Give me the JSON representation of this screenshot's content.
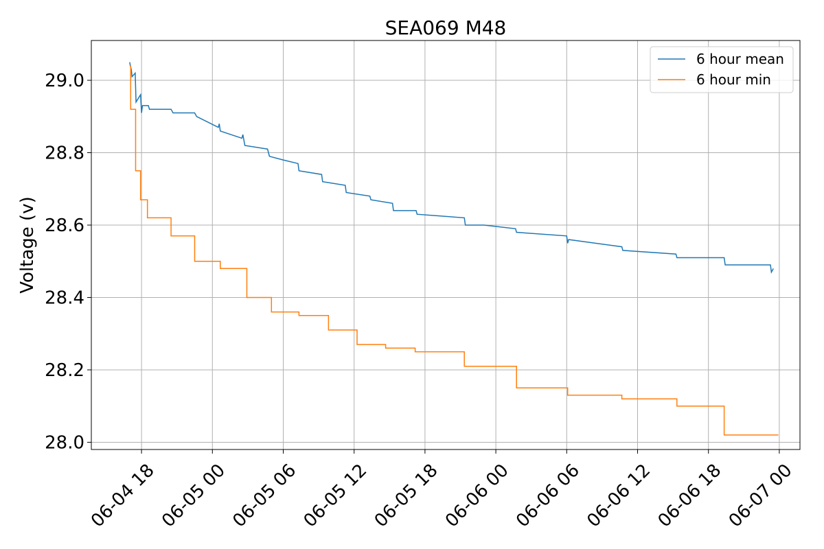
{
  "chart_data": {
    "type": "line",
    "title": "SEA069 M48",
    "xlabel": "",
    "ylabel": "Voltage (v)",
    "x_type": "datetime",
    "xlim": [
      "2024-06-04T13:45",
      "2024-06-07T01:45"
    ],
    "ylim": [
      27.98,
      29.11
    ],
    "x_ticks": [
      {
        "t": "2024-06-04T18:00",
        "label": "06-04 18"
      },
      {
        "t": "2024-06-05T00:00",
        "label": "06-05 00"
      },
      {
        "t": "2024-06-05T06:00",
        "label": "06-05 06"
      },
      {
        "t": "2024-06-05T12:00",
        "label": "06-05 12"
      },
      {
        "t": "2024-06-05T18:00",
        "label": "06-05 18"
      },
      {
        "t": "2024-06-06T00:00",
        "label": "06-06 00"
      },
      {
        "t": "2024-06-06T06:00",
        "label": "06-06 06"
      },
      {
        "t": "2024-06-06T12:00",
        "label": "06-06 12"
      },
      {
        "t": "2024-06-06T18:00",
        "label": "06-06 18"
      },
      {
        "t": "2024-06-07T00:00",
        "label": "06-07 00"
      }
    ],
    "y_ticks": [
      {
        "v": 28.0,
        "label": "28.0"
      },
      {
        "v": 28.2,
        "label": "28.2"
      },
      {
        "v": 28.4,
        "label": "28.4"
      },
      {
        "v": 28.6,
        "label": "28.6"
      },
      {
        "v": 28.8,
        "label": "28.8"
      },
      {
        "v": 29.0,
        "label": "29.0"
      }
    ],
    "grid": true,
    "legend_position": "top-right",
    "series": [
      {
        "name": "6 hour mean",
        "color": "#1f77b4",
        "x": [
          "2024-06-04T17:00",
          "2024-06-04T17:03",
          "2024-06-04T17:08",
          "2024-06-04T17:12",
          "2024-06-04T17:28",
          "2024-06-04T17:32",
          "2024-06-04T17:55",
          "2024-06-04T18:00",
          "2024-06-04T18:05",
          "2024-06-04T18:35",
          "2024-06-04T18:40",
          "2024-06-04T20:30",
          "2024-06-04T20:40",
          "2024-06-04T20:45",
          "2024-06-04T22:30",
          "2024-06-04T22:40",
          "2024-06-05T00:30",
          "2024-06-05T00:35",
          "2024-06-05T00:40",
          "2024-06-05T02:30",
          "2024-06-05T02:35",
          "2024-06-05T02:45",
          "2024-06-05T04:40",
          "2024-06-05T04:45",
          "2024-06-05T04:50",
          "2024-06-05T06:00",
          "2024-06-05T07:15",
          "2024-06-05T07:20",
          "2024-06-05T09:15",
          "2024-06-05T09:20",
          "2024-06-05T11:15",
          "2024-06-05T11:20",
          "2024-06-05T13:20",
          "2024-06-05T13:25",
          "2024-06-05T15:15",
          "2024-06-05T15:20",
          "2024-06-05T17:15",
          "2024-06-05T17:20",
          "2024-06-05T21:20",
          "2024-06-05T21:25",
          "2024-06-05T23:00",
          "2024-06-06T01:40",
          "2024-06-06T01:45",
          "2024-06-06T06:00",
          "2024-06-06T06:05",
          "2024-06-06T06:10",
          "2024-06-06T10:40",
          "2024-06-06T10:45",
          "2024-06-06T15:15",
          "2024-06-06T15:20",
          "2024-06-06T19:20",
          "2024-06-06T19:25",
          "2024-06-06T23:15",
          "2024-06-06T23:20",
          "2024-06-06T23:30"
        ],
        "y": [
          29.05,
          29.04,
          29.03,
          29.01,
          29.02,
          28.94,
          28.96,
          28.91,
          28.93,
          28.93,
          28.92,
          28.92,
          28.91,
          28.91,
          28.91,
          28.9,
          28.87,
          28.88,
          28.86,
          28.84,
          28.85,
          28.82,
          28.81,
          28.8,
          28.79,
          28.78,
          28.77,
          28.75,
          28.74,
          28.72,
          28.71,
          28.69,
          28.68,
          28.67,
          28.66,
          28.64,
          28.64,
          28.63,
          28.62,
          28.6,
          28.6,
          28.59,
          28.58,
          28.57,
          28.55,
          28.56,
          28.54,
          28.53,
          28.52,
          28.51,
          28.51,
          28.49,
          28.49,
          28.47,
          28.48
        ]
      },
      {
        "name": "6 hour min",
        "color": "#ff7f0e",
        "step": true,
        "x": [
          "2024-06-04T17:00",
          "2024-06-04T17:05",
          "2024-06-04T17:30",
          "2024-06-04T17:55",
          "2024-06-04T18:30",
          "2024-06-04T20:30",
          "2024-06-04T22:30",
          "2024-06-05T00:40",
          "2024-06-05T02:55",
          "2024-06-05T05:00",
          "2024-06-05T07:20",
          "2024-06-05T09:50",
          "2024-06-05T12:15",
          "2024-06-05T14:40",
          "2024-06-05T17:10",
          "2024-06-05T21:20",
          "2024-06-06T01:45",
          "2024-06-06T06:05",
          "2024-06-06T10:40",
          "2024-06-06T15:20",
          "2024-06-06T19:20",
          "2024-06-06T23:55"
        ],
        "y": [
          29.04,
          28.92,
          28.75,
          28.67,
          28.62,
          28.57,
          28.5,
          28.48,
          28.4,
          28.36,
          28.35,
          28.31,
          28.27,
          28.26,
          28.25,
          28.21,
          28.15,
          28.13,
          28.12,
          28.1,
          28.02,
          28.02
        ]
      }
    ]
  }
}
